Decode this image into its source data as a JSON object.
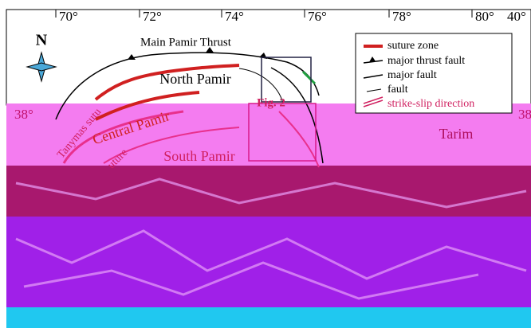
{
  "map": {
    "longitude_labels": [
      "70°",
      "72°",
      "74°",
      "76°",
      "78°",
      "80°"
    ],
    "latitude_labels": [
      "40°",
      "38°",
      "38"
    ],
    "north": "N",
    "places": [
      "Main Pamir Thrust",
      "North Pamir",
      "Central Pamir",
      "South Pamir",
      "Tanymas sutu",
      "uture",
      "Fig. 2",
      "Tarim"
    ],
    "legend": [
      "suture zone",
      "major thrust fault",
      "major fault",
      "fault",
      "strike-slip direction"
    ]
  }
}
